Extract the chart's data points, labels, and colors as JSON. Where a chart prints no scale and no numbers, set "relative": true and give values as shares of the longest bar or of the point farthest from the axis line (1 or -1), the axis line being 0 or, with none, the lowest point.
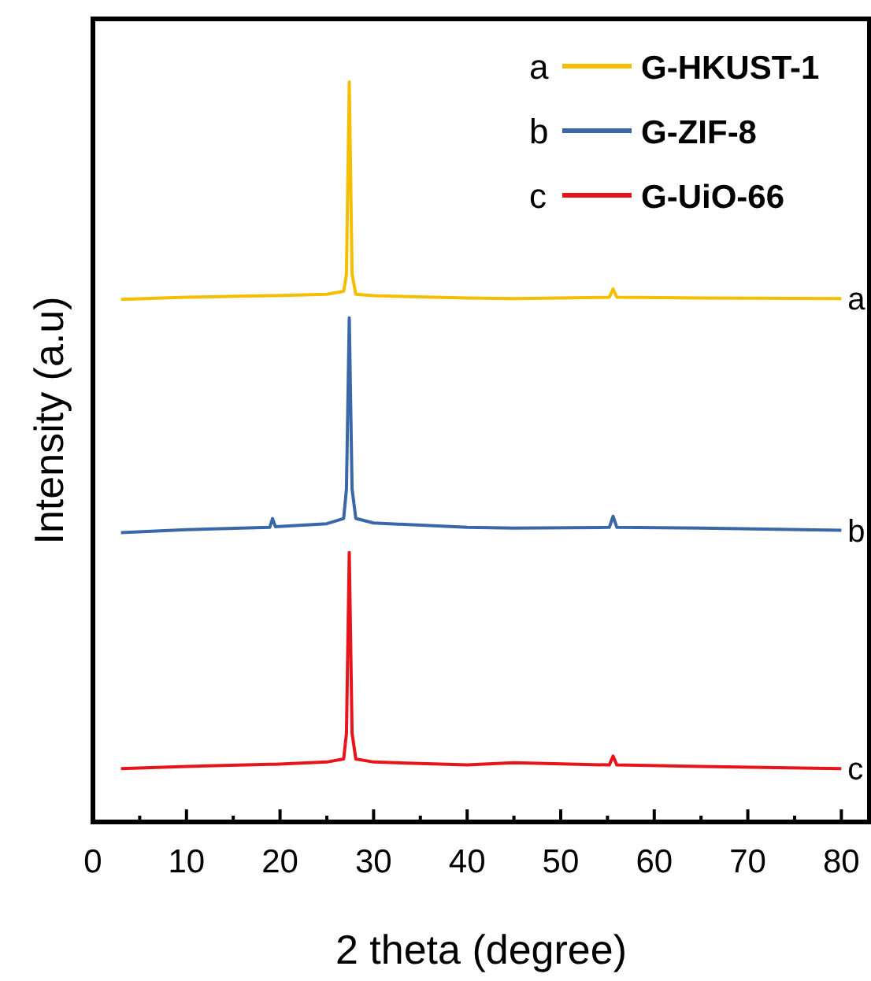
{
  "chart_data": {
    "type": "line",
    "relative": true,
    "xlabel": "2 theta (degree)",
    "ylabel": "Intensity (a.u)",
    "xlim": [
      0,
      83
    ],
    "xticks": [
      0,
      {
        "value": 5,
        "label": null
      },
      10,
      {
        "value": 15,
        "label": null
      },
      20,
      {
        "value": 25,
        "label": null
      },
      30,
      {
        "value": 35,
        "label": null
      },
      40,
      {
        "value": 45,
        "label": null
      },
      50,
      {
        "value": 55,
        "label": null
      },
      60,
      {
        "value": 65,
        "label": null
      },
      70,
      {
        "value": 75,
        "label": null
      },
      80
    ],
    "grid": false,
    "legend": "top right",
    "marker": "none",
    "line_style": "solid",
    "x": [
      3,
      10,
      18.9,
      19.2,
      19.5,
      25,
      26.8,
      27.1,
      27.4,
      27.7,
      28.1,
      30,
      40,
      45,
      55.2,
      55.6,
      56,
      65,
      80
    ],
    "series": [
      {
        "name": "G-HKUST-1",
        "color": "#f5be00",
        "values": [
          0.706,
          0.709,
          0.711,
          0.711,
          0.711,
          0.713,
          0.717,
          0.74,
          1.0,
          0.74,
          0.713,
          0.711,
          0.708,
          0.707,
          0.709,
          0.72,
          0.709,
          0.708,
          0.707
        ]
      },
      {
        "name": "G-ZIF-8",
        "color": "#3a67a8",
        "values": [
          0.391,
          0.395,
          0.398,
          0.41,
          0.399,
          0.403,
          0.41,
          0.45,
          0.681,
          0.45,
          0.41,
          0.404,
          0.398,
          0.397,
          0.398,
          0.413,
          0.398,
          0.397,
          0.394
        ]
      },
      {
        "name": "G-UiO-66",
        "color": "#e8141c",
        "values": [
          0.072,
          0.075,
          0.078,
          0.078,
          0.078,
          0.081,
          0.085,
          0.12,
          0.364,
          0.12,
          0.085,
          0.081,
          0.077,
          0.08,
          0.077,
          0.089,
          0.077,
          0.075,
          0.072
        ]
      }
    ],
    "annotations": [
      "a",
      "b",
      "c"
    ]
  }
}
